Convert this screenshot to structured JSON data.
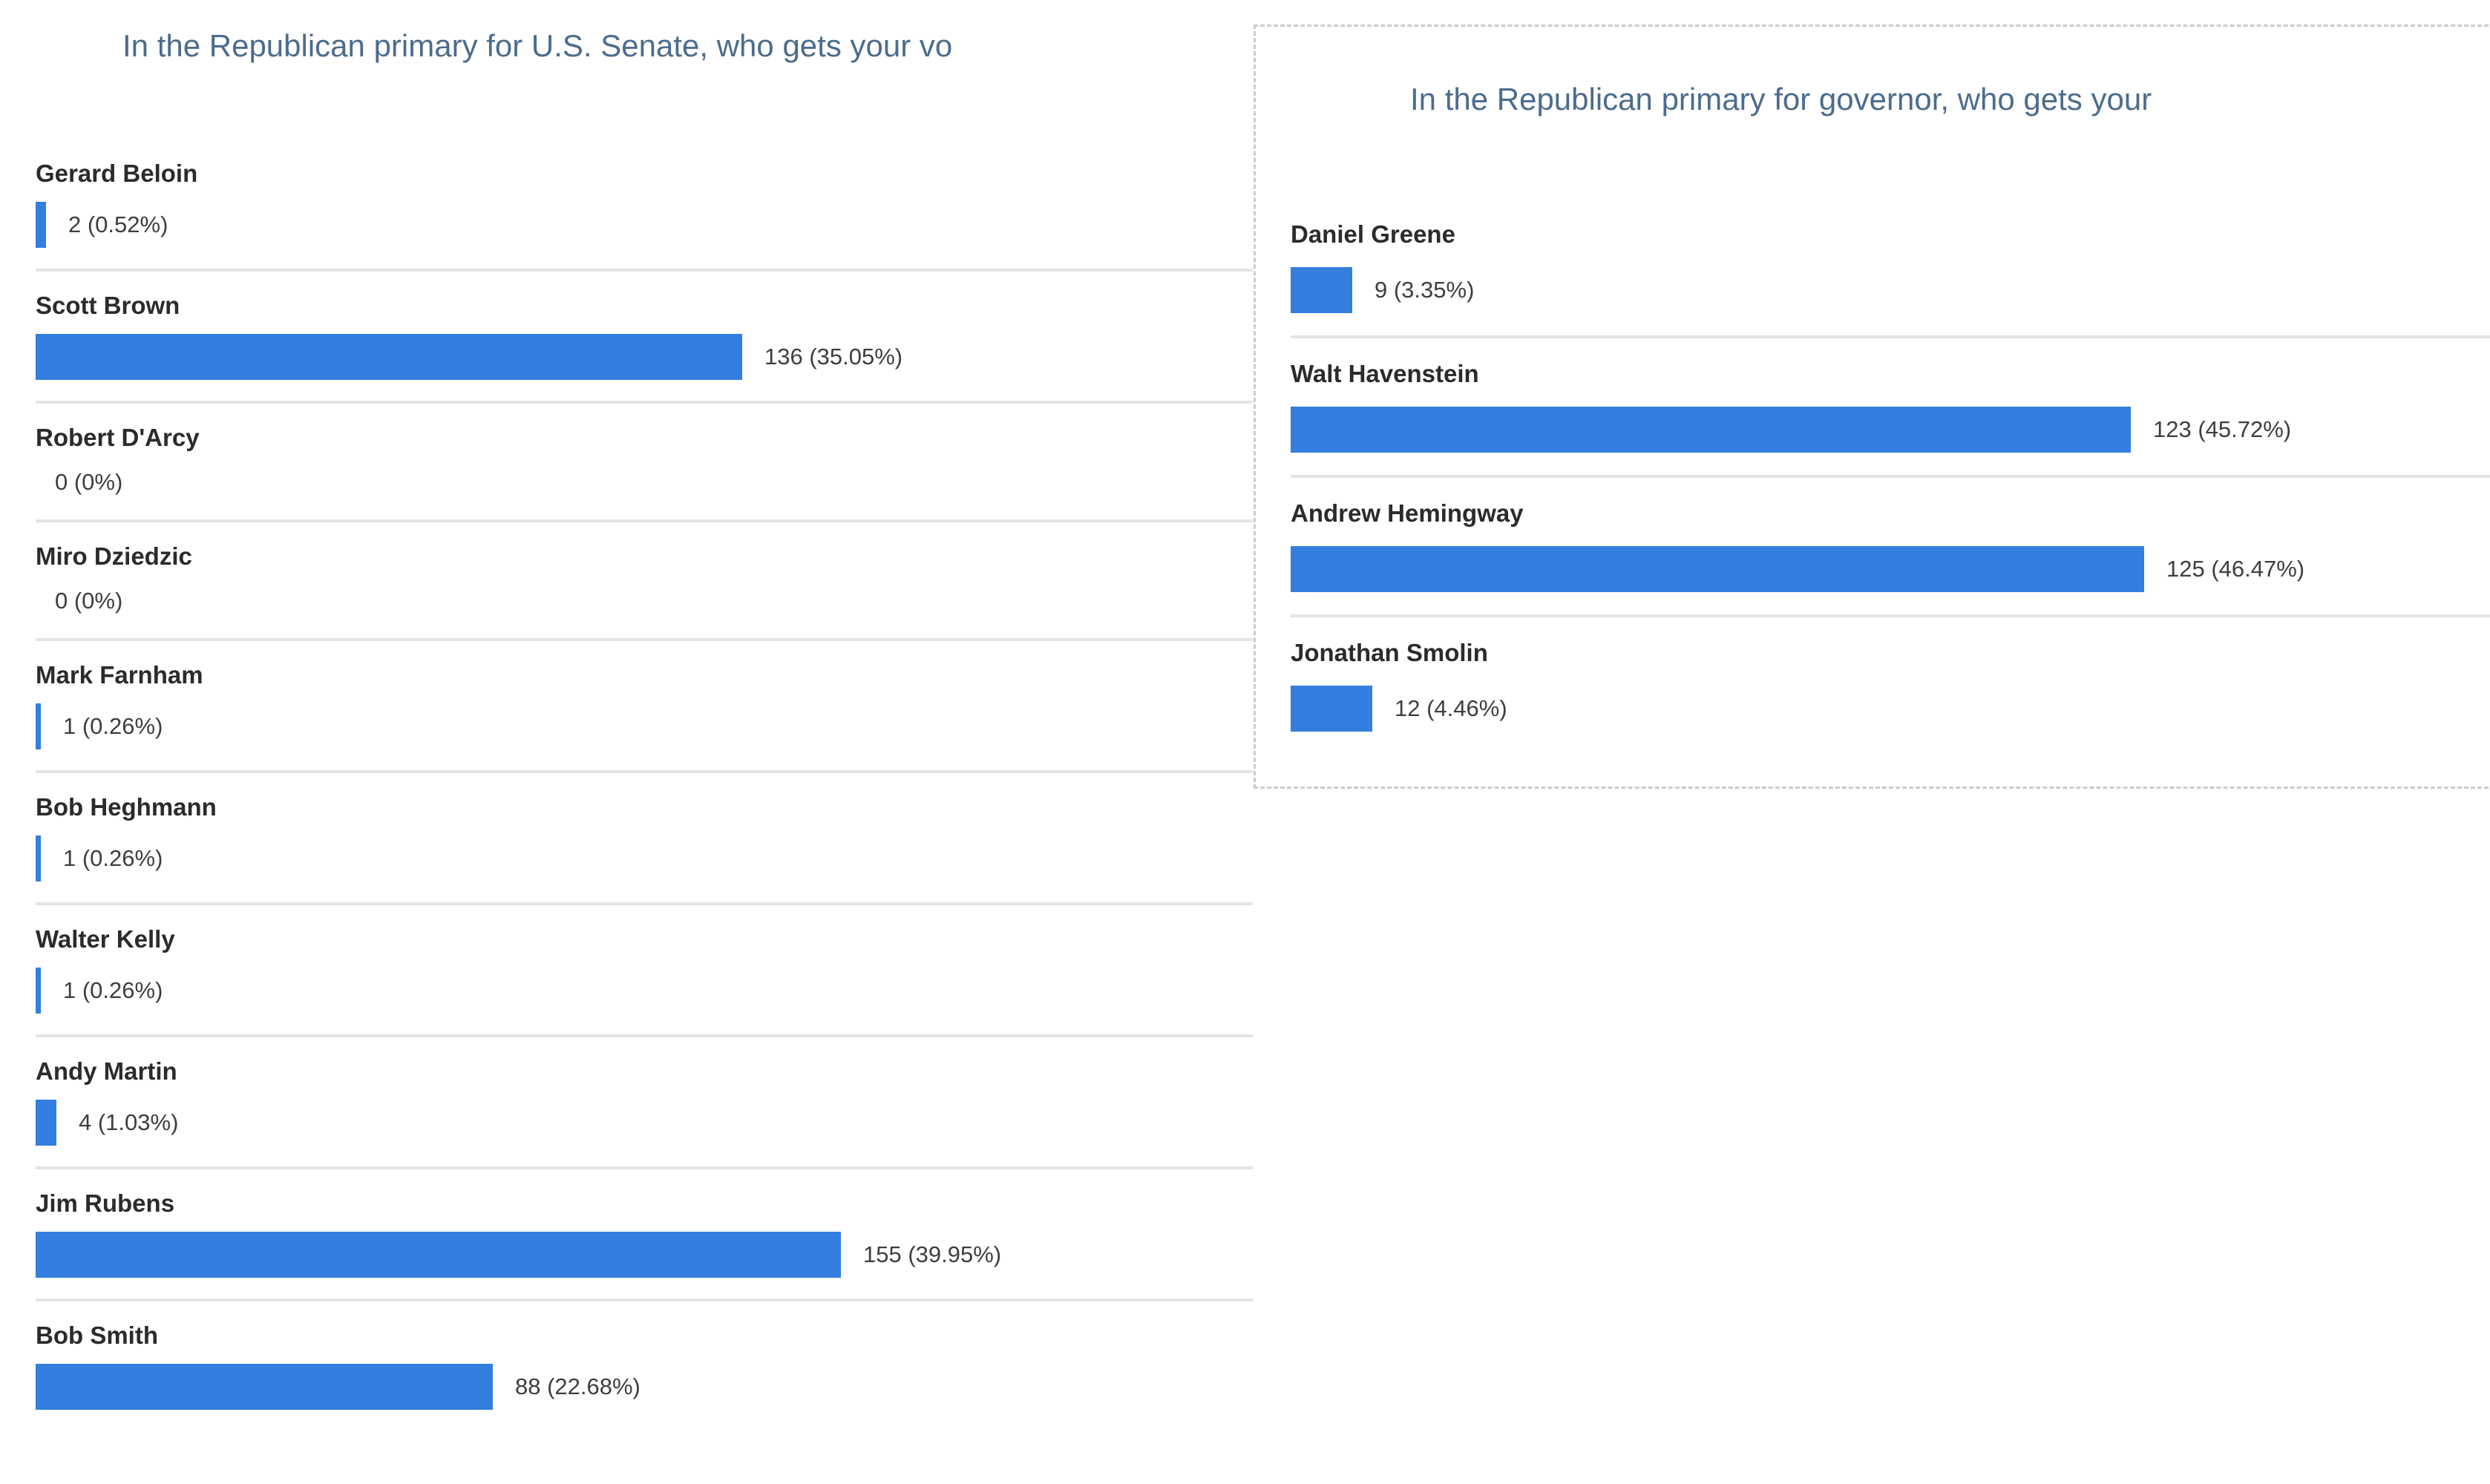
{
  "colors": {
    "bar": "#337ede",
    "title_text": "#4c6c8c",
    "candidate_name_text": "#2b2b2b",
    "value_text": "#3e3e3e",
    "row_divider": "#e4e4e4",
    "panel_dashed_border": "#cccccc",
    "background": "#ffffff"
  },
  "chart_data": [
    {
      "type": "bar",
      "orientation": "horizontal",
      "title": "In the Republican primary for U.S. Senate, who gets your vo",
      "categories": [
        "Gerard Beloin",
        "Scott Brown",
        "Robert D'Arcy",
        "Miro Dziedzic",
        "Mark Farnham",
        "Bob Heghmann",
        "Walter Kelly",
        "Andy Martin",
        "Jim Rubens",
        "Bob Smith"
      ],
      "values": [
        2,
        136,
        0,
        0,
        1,
        1,
        1,
        4,
        155,
        88
      ],
      "value_labels": [
        "2 (0.52%)",
        "136 (35.05%)",
        "0 (0%)",
        "0 (0%)",
        "1 (0.26%)",
        "1 (0.26%)",
        "1 (0.26%)",
        "4 (1.03%)",
        "155 (39.95%)",
        "88 (22.68%)"
      ],
      "max_value": 155,
      "bar_color": "#337ede",
      "legend": "none",
      "grid": "off"
    },
    {
      "type": "bar",
      "orientation": "horizontal",
      "title": "In the Republican primary for governor, who gets your",
      "categories": [
        "Daniel Greene",
        "Walt Havenstein",
        "Andrew Hemingway",
        "Jonathan Smolin"
      ],
      "values": [
        9,
        123,
        125,
        12
      ],
      "value_labels": [
        "9 (3.35%)",
        "123 (45.72%)",
        "125 (46.47%)",
        "12 (4.46%)"
      ],
      "max_value": 125,
      "bar_color": "#337ede",
      "legend": "none",
      "grid": "off"
    }
  ]
}
